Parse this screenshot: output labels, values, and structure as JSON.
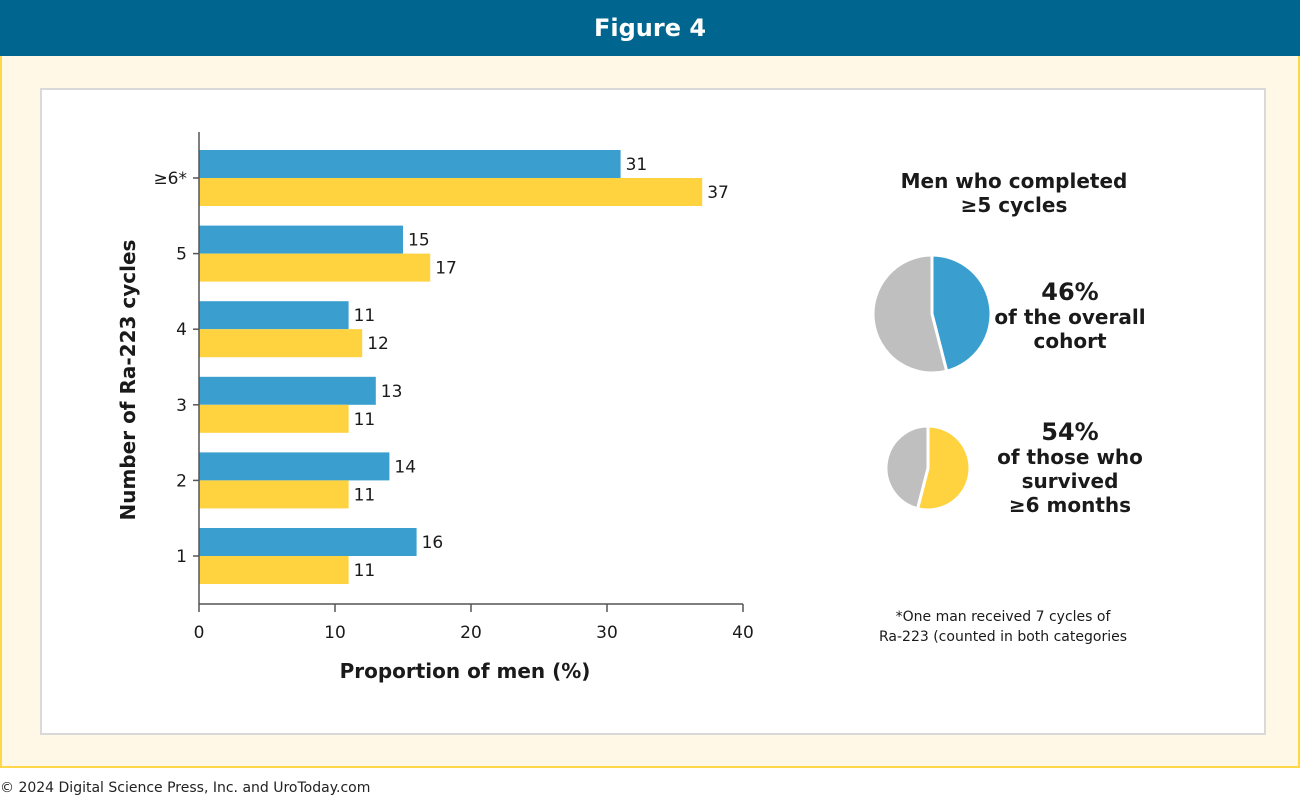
{
  "header": {
    "title": "Figure 4"
  },
  "chart_data": {
    "type": "bar",
    "orientation": "horizontal",
    "categories": [
      "1",
      "2",
      "3",
      "4",
      "5",
      "≥6*"
    ],
    "series": [
      {
        "values": [
          16,
          14,
          13,
          11,
          15,
          31
        ],
        "color": "#3a9fcf"
      },
      {
        "values": [
          11,
          11,
          11,
          12,
          17,
          37
        ],
        "color": "#ffd23f"
      }
    ],
    "xlabel": "Proportion of men (%)",
    "ylabel": "Number of Ra-223 cycles",
    "xlim": [
      0,
      40
    ],
    "xticks": [
      0,
      10,
      20,
      30,
      40
    ]
  },
  "side_panel": {
    "title_line1": "Men who completed",
    "title_line2": "≥5 cycles",
    "pies": [
      {
        "percent": 46,
        "label": "46%",
        "line1": "of the overall",
        "line2": "cohort",
        "line3": "",
        "color": "#3a9fcf",
        "rest_color": "#bfbfbf"
      },
      {
        "percent": 54,
        "label": "54%",
        "line1": "of those who",
        "line2": "survived",
        "line3": "≥6 months",
        "color": "#ffd23f",
        "rest_color": "#bfbfbf"
      }
    ],
    "footnote_line1": "*One man received 7 cycles of",
    "footnote_line2": "Ra-223 (counted in both categories"
  },
  "copyright": "© 2024 Digital Science Press, Inc. and UroToday.com"
}
